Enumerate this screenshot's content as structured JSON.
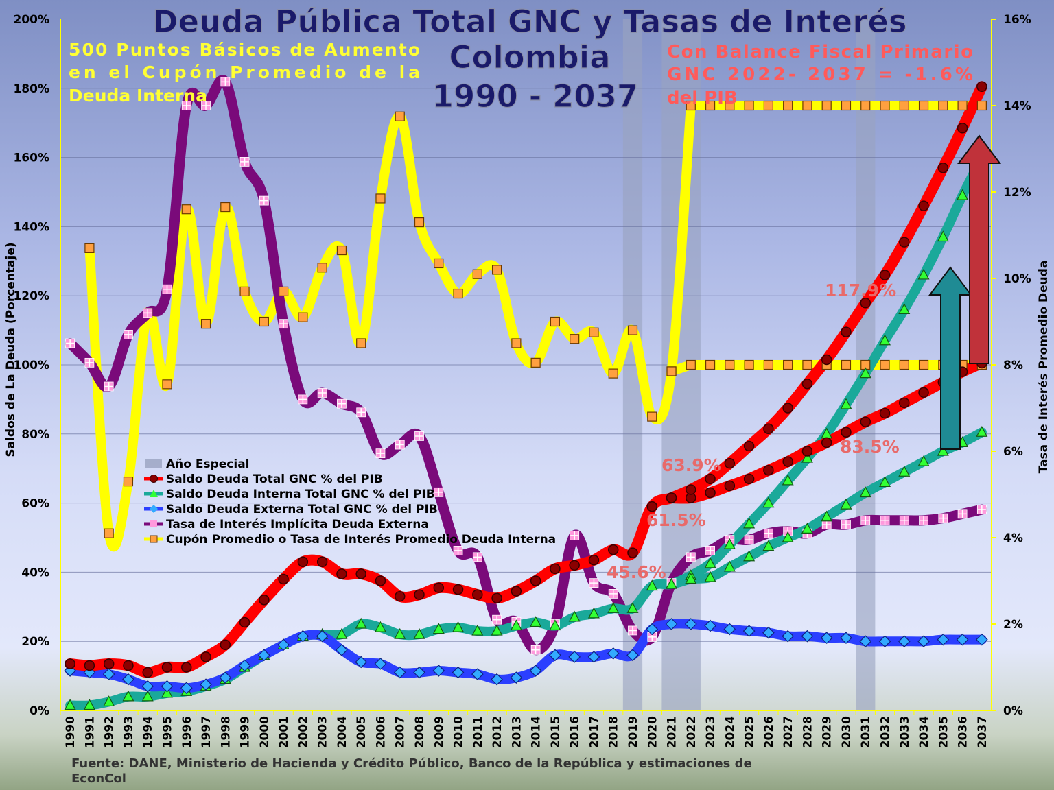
{
  "title": {
    "line1": "Deuda Pública Total GNC  y Tasas de Interés",
    "line2": "Colombia",
    "line3": "1990 - 2037"
  },
  "annotations": {
    "left_note": [
      "500 Puntos Básicos de Aumento",
      "en  el  Cupón  Promedio  de  la",
      "Deuda Interna"
    ],
    "right_note": [
      "Con  Balance  Fiscal  Primario",
      "GNC  2022-  2037  =  -1.6%",
      "del PIB"
    ],
    "value_labels": [
      "117.9%",
      "63.9%",
      "83.5%",
      "61.5%",
      "45.6%"
    ]
  },
  "source": "Fuente: DANE, Ministerio de Hacienda y Crédito Público, Banco de la República y estimaciones de EconCol",
  "colors": {
    "total": "#ff0000",
    "interna": "#1aa99a",
    "externa": "#2b3fff",
    "tasa_externa": "#7a0a7a",
    "cupon": "#ffff00",
    "special": "#9aa3c0",
    "title": "#1a1a6a",
    "note_left": "#ffff33",
    "note_right": "#ff5a5a"
  },
  "chart_data": {
    "type": "line",
    "x": [
      "1990",
      "1991",
      "1992",
      "1993",
      "1994",
      "1995",
      "1996",
      "1997",
      "1998",
      "1999",
      "2000",
      "2001",
      "2002",
      "2003",
      "2004",
      "2005",
      "2006",
      "2007",
      "2008",
      "2009",
      "2010",
      "2011",
      "2012",
      "2013",
      "2014",
      "2015",
      "2016",
      "2017",
      "2018",
      "2019",
      "2020",
      "2021",
      "2022",
      "2023",
      "2024",
      "2025",
      "2026",
      "2027",
      "2028",
      "2029",
      "2030",
      "2031",
      "2032",
      "2033",
      "2034",
      "2035",
      "2036",
      "2037"
    ],
    "ylabel": "Saldos de La Deuda (Porcentaje)",
    "y2label": "Tasa de Interés Promedio Deuda",
    "ylim": [
      0,
      200
    ],
    "y2lim": [
      0,
      16
    ],
    "yticks": [
      "0%",
      "20%",
      "40%",
      "60%",
      "80%",
      "100%",
      "120%",
      "140%",
      "160%",
      "180%",
      "200%"
    ],
    "y2ticks": [
      "0%",
      "2%",
      "4%",
      "6%",
      "8%",
      "10%",
      "12%",
      "14%",
      "16%"
    ],
    "special_years": [
      "2019",
      "2021",
      "2022",
      "2031"
    ],
    "legend": [
      "Año Especial",
      "Saldo Deuda Total GNC % del PIB",
      "Saldo Deuda Interna Total GNC % del PIB",
      "Saldo Deuda Externa Total GNC % del PIB",
      "Tasa de Interés Implícita Deuda Externa",
      "Cupón Promedio o Tasa de Interés Promedio Deuda Interna"
    ],
    "series": [
      {
        "name": "Saldo Deuda Total GNC % del PIB",
        "axis": "left",
        "marker": "circle",
        "values": [
          13.5,
          13,
          13.5,
          13,
          11,
          12.5,
          12.5,
          15.5,
          19,
          25.5,
          32,
          38,
          43,
          43,
          39.5,
          39.5,
          37.5,
          33,
          33.5,
          35.5,
          35,
          33.5,
          32.5,
          34.5,
          37.5,
          41,
          42,
          43.5,
          46.5,
          45.6,
          59,
          61.5,
          63.9,
          67,
          71.5,
          76.5,
          81.5,
          87.5,
          94.5,
          101.5,
          109.5,
          117.9,
          126,
          135.5,
          146,
          157,
          168.5,
          180.5
        ]
      },
      {
        "name": "Saldo Deuda Total GNC % del PIB (escenario)",
        "axis": "left",
        "marker": "circle",
        "values": [
          null,
          null,
          null,
          null,
          null,
          null,
          null,
          null,
          null,
          null,
          null,
          null,
          null,
          null,
          null,
          null,
          null,
          null,
          null,
          null,
          null,
          null,
          null,
          null,
          null,
          null,
          null,
          null,
          null,
          null,
          null,
          61.5,
          61.5,
          63,
          65,
          67,
          69.5,
          72,
          75,
          77.5,
          80.5,
          83.5,
          86,
          89,
          92,
          95,
          98,
          100.5
        ]
      },
      {
        "name": "Saldo Deuda Interna Total GNC % del PIB",
        "axis": "left",
        "marker": "triangle",
        "values": [
          1.5,
          1.5,
          2.5,
          4,
          4,
          5,
          5.5,
          7,
          9,
          12.5,
          16,
          19,
          21.5,
          22,
          22,
          25,
          24,
          22,
          22,
          23.5,
          24,
          23,
          23,
          24.5,
          25.5,
          24.5,
          27,
          28,
          29.5,
          29.5,
          36,
          36.5,
          38,
          38.5,
          41.5,
          44.5,
          47.5,
          50,
          52.5,
          56,
          59.5,
          63,
          66,
          69,
          72,
          75,
          77.5,
          80.5
        ]
      },
      {
        "name": "Saldo Deuda Interna Total GNC % del PIB (escenario)",
        "axis": "left",
        "marker": "triangle",
        "values": [
          null,
          null,
          null,
          null,
          null,
          null,
          null,
          null,
          null,
          null,
          null,
          null,
          null,
          null,
          null,
          null,
          null,
          null,
          null,
          null,
          null,
          null,
          null,
          null,
          null,
          null,
          null,
          null,
          null,
          null,
          null,
          36.5,
          39,
          42.5,
          48,
          54,
          60,
          66.5,
          73,
          80,
          88.5,
          97.5,
          107,
          116,
          126,
          137,
          149,
          160
        ]
      },
      {
        "name": "Saldo Deuda Externa Total GNC % del PIB",
        "axis": "left",
        "marker": "diamond",
        "values": [
          11.5,
          11,
          10.5,
          9,
          7,
          7,
          6.5,
          7.5,
          9.5,
          13,
          16,
          19,
          21.5,
          21.5,
          17.5,
          14,
          13.5,
          11,
          11,
          11.5,
          11,
          10.5,
          9,
          9.5,
          11.5,
          16,
          15.5,
          15.5,
          16.5,
          16,
          23.5,
          25,
          25,
          24.5,
          23.5,
          23,
          22.5,
          21.5,
          21.5,
          21,
          21,
          20,
          20,
          20,
          20,
          20.5,
          20.5,
          20.5
        ]
      },
      {
        "name": "Tasa de Interés Implícita Deuda Externa",
        "axis": "right",
        "marker": "cross",
        "values": [
          8.5,
          8.05,
          7.5,
          8.7,
          9.2,
          9.75,
          14,
          14,
          14.55,
          12.7,
          11.8,
          8.95,
          7.2,
          7.35,
          7.1,
          6.9,
          5.95,
          6.15,
          6.35,
          5.05,
          3.7,
          3.55,
          2.1,
          2.05,
          1.4,
          2,
          4.05,
          2.95,
          2.7,
          1.85,
          1.7,
          2.95,
          3.55,
          3.7,
          3.95,
          3.95,
          4.1,
          4.15,
          4.1,
          4.3,
          4.3,
          4.4,
          4.4,
          4.4,
          4.4,
          4.45,
          4.55,
          4.65
        ]
      },
      {
        "name": "Cupón Promedio o Tasa de Interés Promedio Deuda Interna",
        "axis": "right",
        "marker": "square",
        "values": [
          null,
          10.7,
          4.1,
          5.3,
          9.2,
          7.55,
          11.6,
          8.95,
          11.65,
          9.7,
          9,
          9.7,
          9.1,
          10.25,
          10.65,
          8.5,
          11.85,
          13.75,
          11.3,
          10.35,
          9.65,
          10.1,
          10.2,
          8.5,
          8.05,
          9,
          8.6,
          8.75,
          7.8,
          8.8,
          6.8,
          7.85,
          14,
          14,
          14,
          14,
          14,
          14,
          14,
          14,
          14,
          14,
          14,
          14,
          14,
          14,
          14,
          14
        ]
      },
      {
        "name": "Cupón Promedio (escenario)",
        "axis": "right",
        "marker": "square",
        "values": [
          null,
          null,
          null,
          null,
          null,
          null,
          null,
          null,
          null,
          null,
          null,
          null,
          null,
          null,
          null,
          null,
          null,
          null,
          null,
          null,
          null,
          null,
          null,
          null,
          null,
          null,
          null,
          null,
          null,
          null,
          null,
          7.85,
          8,
          8,
          8,
          8,
          8,
          8,
          8,
          8,
          8,
          8,
          8,
          8,
          8,
          8,
          8,
          8
        ]
      }
    ]
  }
}
